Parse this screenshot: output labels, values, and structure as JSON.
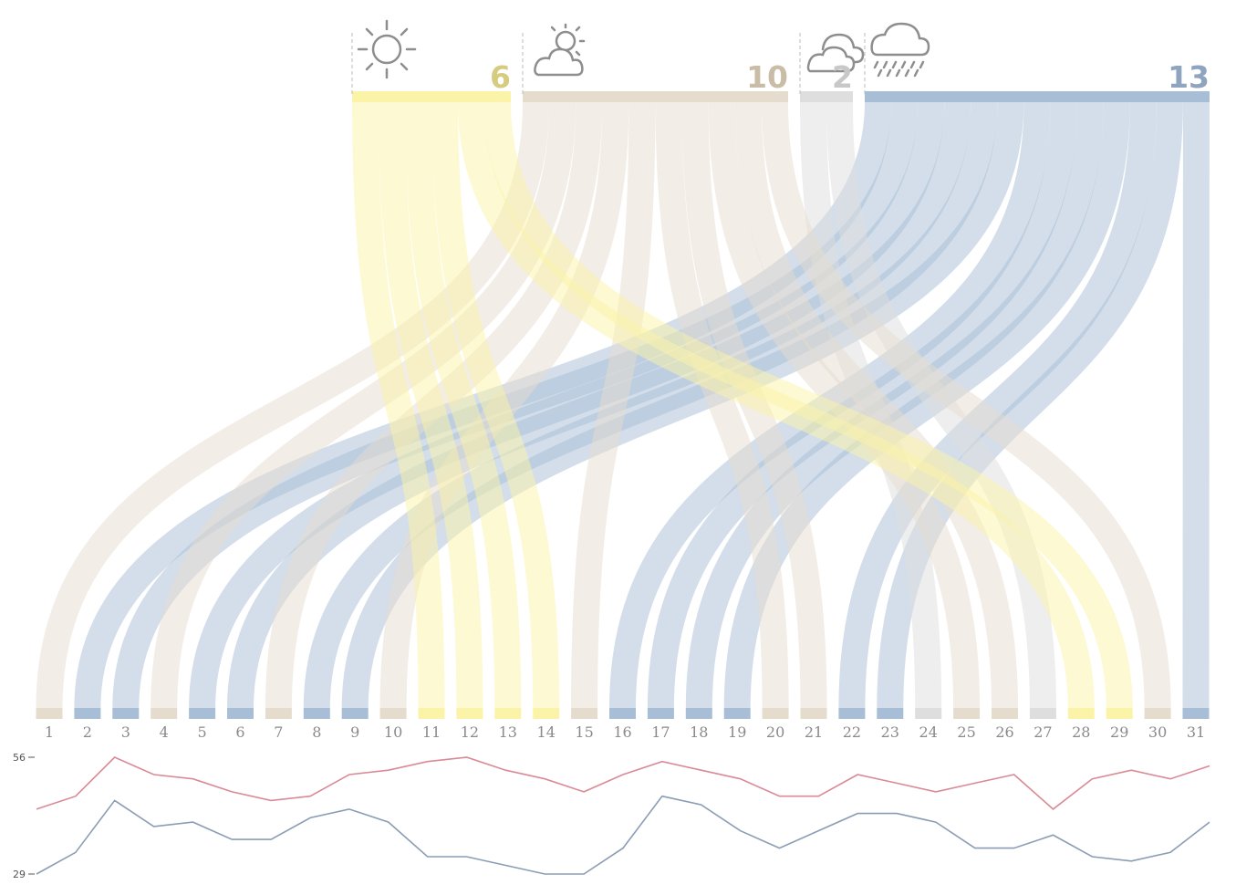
{
  "chart_data": {
    "type": "sankey",
    "categories": [
      {
        "key": "sunny",
        "icon": "sun-icon",
        "count": "6",
        "color": "#fbf3a8"
      },
      {
        "key": "partly_cloudy",
        "icon": "partly-cloudy-icon",
        "count": "10",
        "color": "#e5dccd"
      },
      {
        "key": "cloudy",
        "icon": "cloudy-icon",
        "count": "2",
        "color": "#dedede"
      },
      {
        "key": "rain",
        "icon": "rain-icon",
        "count": "13",
        "color": "#a8bdd6"
      }
    ],
    "days": [
      {
        "day": "1",
        "weather": "partly_cloudy"
      },
      {
        "day": "2",
        "weather": "rain"
      },
      {
        "day": "3",
        "weather": "rain"
      },
      {
        "day": "4",
        "weather": "partly_cloudy"
      },
      {
        "day": "5",
        "weather": "rain"
      },
      {
        "day": "6",
        "weather": "rain"
      },
      {
        "day": "7",
        "weather": "partly_cloudy"
      },
      {
        "day": "8",
        "weather": "rain"
      },
      {
        "day": "9",
        "weather": "rain"
      },
      {
        "day": "10",
        "weather": "partly_cloudy"
      },
      {
        "day": "11",
        "weather": "sunny"
      },
      {
        "day": "12",
        "weather": "sunny"
      },
      {
        "day": "13",
        "weather": "sunny"
      },
      {
        "day": "14",
        "weather": "sunny"
      },
      {
        "day": "15",
        "weather": "partly_cloudy"
      },
      {
        "day": "16",
        "weather": "rain"
      },
      {
        "day": "17",
        "weather": "rain"
      },
      {
        "day": "18",
        "weather": "rain"
      },
      {
        "day": "19",
        "weather": "rain"
      },
      {
        "day": "20",
        "weather": "partly_cloudy"
      },
      {
        "day": "21",
        "weather": "partly_cloudy"
      },
      {
        "day": "22",
        "weather": "rain"
      },
      {
        "day": "23",
        "weather": "rain"
      },
      {
        "day": "24",
        "weather": "cloudy"
      },
      {
        "day": "25",
        "weather": "partly_cloudy"
      },
      {
        "day": "26",
        "weather": "partly_cloudy"
      },
      {
        "day": "27",
        "weather": "cloudy"
      },
      {
        "day": "28",
        "weather": "sunny"
      },
      {
        "day": "29",
        "weather": "sunny"
      },
      {
        "day": "30",
        "weather": "partly_cloudy"
      },
      {
        "day": "31",
        "weather": "rain"
      }
    ],
    "temperature": {
      "y_ticks": [
        "56",
        "29"
      ],
      "ylim": [
        29,
        56
      ],
      "high": {
        "color": "#d98a96",
        "values": [
          44,
          47,
          56,
          52,
          51,
          48,
          46,
          47,
          52,
          53,
          55,
          56,
          53,
          51,
          48,
          52,
          55,
          53,
          51,
          47,
          47,
          52,
          50,
          48,
          50,
          52,
          44,
          51,
          53,
          51,
          54
        ]
      },
      "low": {
        "color": "#8a9db5",
        "values": [
          29,
          34,
          46,
          40,
          41,
          37,
          37,
          42,
          44,
          41,
          33,
          33,
          31,
          29,
          29,
          35,
          47,
          45,
          39,
          35,
          39,
          43,
          43,
          41,
          35,
          35,
          38,
          33,
          32,
          34,
          41
        ]
      }
    }
  }
}
